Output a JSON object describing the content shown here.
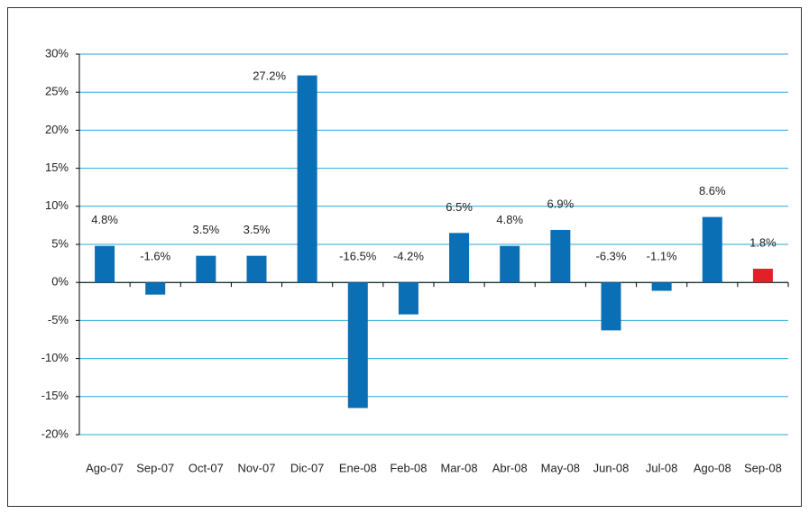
{
  "chart_data": {
    "type": "bar",
    "categories": [
      "Ago-07",
      "Sep-07",
      "Oct-07",
      "Nov-07",
      "Dic-07",
      "Ene-08",
      "Feb-08",
      "Mar-08",
      "Abr-08",
      "May-08",
      "Jun-08",
      "Jul-08",
      "Ago-08",
      "Sep-08"
    ],
    "values": [
      4.8,
      -1.6,
      3.5,
      3.5,
      27.2,
      -16.5,
      -4.2,
      6.5,
      4.8,
      6.9,
      -6.3,
      -1.1,
      8.6,
      1.8
    ],
    "value_labels": [
      "4.8%",
      "-1.6%",
      "3.5%",
      "3.5%",
      "27.2%",
      "-16.5%",
      "-4.2%",
      "6.5%",
      "4.8%",
      "6.9%",
      "-6.3%",
      "-1.1%",
      "8.6%",
      "1.8%"
    ],
    "colors": [
      "#0a6fb5",
      "#0a6fb5",
      "#0a6fb5",
      "#0a6fb5",
      "#0a6fb5",
      "#0a6fb5",
      "#0a6fb5",
      "#0a6fb5",
      "#0a6fb5",
      "#0a6fb5",
      "#0a6fb5",
      "#0a6fb5",
      "#0a6fb5",
      "#e3202a"
    ],
    "ylim": [
      -20,
      30
    ],
    "yticks": [
      {
        "value": -20,
        "label": "-20%"
      },
      {
        "value": -15,
        "label": "-15%"
      },
      {
        "value": -10,
        "label": "-10%"
      },
      {
        "value": -5,
        "label": "-5%"
      },
      {
        "value": 0,
        "label": "0%"
      },
      {
        "value": 5,
        "label": "5%"
      },
      {
        "value": 10,
        "label": "10%"
      },
      {
        "value": 15,
        "label": "15%"
      },
      {
        "value": 20,
        "label": "20%"
      },
      {
        "value": 25,
        "label": "25%"
      },
      {
        "value": 30,
        "label": "30%"
      }
    ],
    "grid": true
  }
}
